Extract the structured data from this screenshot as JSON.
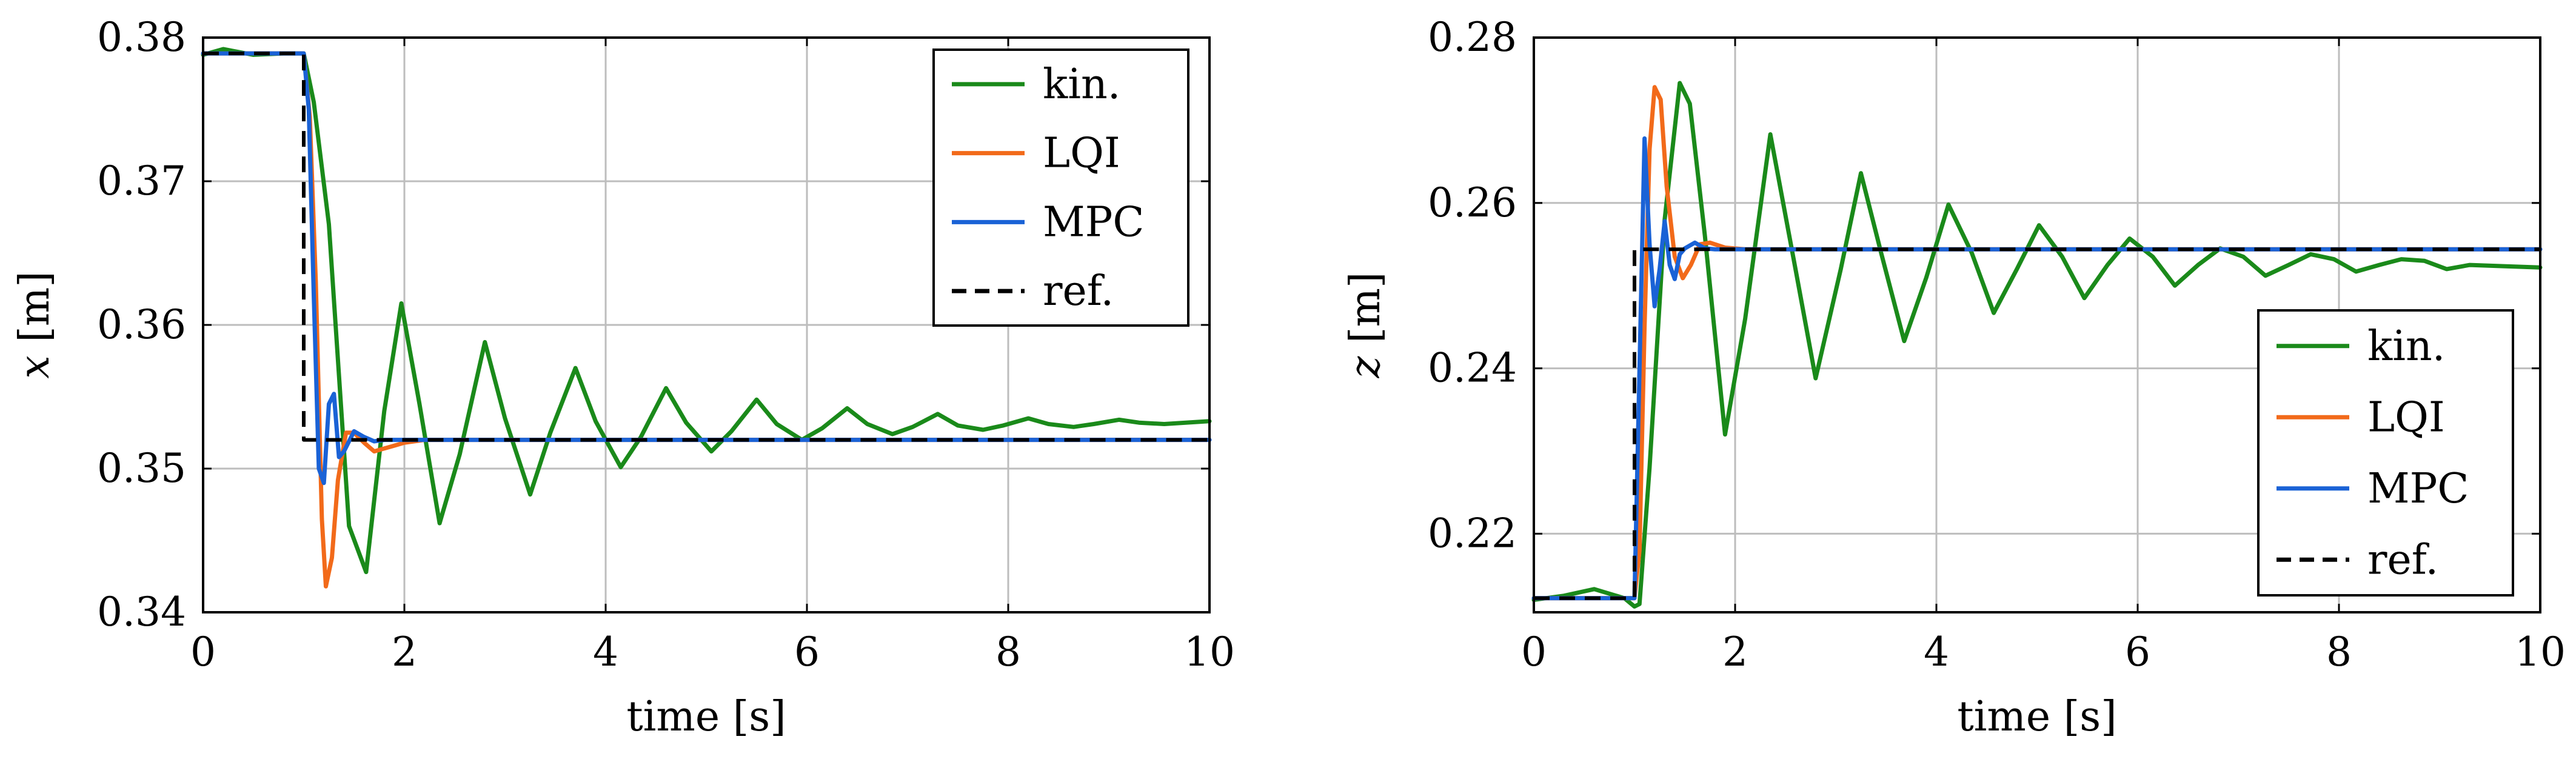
{
  "chart_data": [
    {
      "type": "line",
      "xlabel": "time [s]",
      "ylabel_var": "x",
      "ylabel_unit": " [m]",
      "xlim": [
        0,
        10
      ],
      "ylim": [
        0.34,
        0.38
      ],
      "xticks": [
        0,
        2,
        4,
        6,
        8,
        10
      ],
      "yticks": [
        0.34,
        0.35,
        0.36,
        0.37,
        0.38
      ],
      "xtick_labels": [
        "0",
        "2",
        "4",
        "6",
        "8",
        "10"
      ],
      "ytick_labels": [
        "0.34",
        "0.35",
        "0.36",
        "0.37",
        "0.38"
      ],
      "grid": true,
      "legend_position": "top-right",
      "series": [
        {
          "name": "kin.",
          "color": "#1a8a1a",
          "dashed": false,
          "x": [
            0,
            0.2,
            0.5,
            0.8,
            1.0,
            1.1,
            1.25,
            1.45,
            1.62,
            1.8,
            1.97,
            2.15,
            2.35,
            2.55,
            2.8,
            3.0,
            3.25,
            3.45,
            3.7,
            3.9,
            4.15,
            4.35,
            4.6,
            4.8,
            5.05,
            5.25,
            5.5,
            5.7,
            5.95,
            6.15,
            6.4,
            6.6,
            6.85,
            7.05,
            7.3,
            7.5,
            7.75,
            7.95,
            8.2,
            8.4,
            8.65,
            8.85,
            9.1,
            9.3,
            9.55,
            10.0
          ],
          "y": [
            0.3788,
            0.3792,
            0.3788,
            0.3789,
            0.3789,
            0.3755,
            0.367,
            0.346,
            0.3428,
            0.354,
            0.3615,
            0.3545,
            0.3462,
            0.351,
            0.3588,
            0.3535,
            0.3482,
            0.3525,
            0.357,
            0.3533,
            0.3501,
            0.3522,
            0.3556,
            0.3532,
            0.3512,
            0.3526,
            0.3548,
            0.3531,
            0.352,
            0.3528,
            0.3542,
            0.3531,
            0.3524,
            0.3529,
            0.3538,
            0.353,
            0.3527,
            0.353,
            0.3535,
            0.3531,
            0.3529,
            0.3531,
            0.3534,
            0.3532,
            0.3531,
            0.3533
          ]
        },
        {
          "name": "LQI",
          "color": "#f26a1a",
          "dashed": false,
          "x": [
            0,
            0.9,
            1.0,
            1.06,
            1.12,
            1.18,
            1.22,
            1.28,
            1.34,
            1.42,
            1.5,
            1.6,
            1.7,
            1.8,
            1.9,
            2.0,
            2.2,
            2.4,
            2.6,
            3.0,
            10.0
          ],
          "y": [
            0.3789,
            0.3789,
            0.3789,
            0.3745,
            0.363,
            0.3465,
            0.3418,
            0.3438,
            0.3492,
            0.3525,
            0.3525,
            0.3518,
            0.3512,
            0.3514,
            0.3516,
            0.3518,
            0.352,
            0.352,
            0.352,
            0.352,
            0.352
          ]
        },
        {
          "name": "MPC",
          "color": "#1a62d6",
          "dashed": false,
          "x": [
            0,
            0.9,
            1.0,
            1.05,
            1.1,
            1.15,
            1.2,
            1.25,
            1.3,
            1.35,
            1.4,
            1.5,
            1.6,
            1.7,
            1.8,
            2.0,
            10.0
          ],
          "y": [
            0.3789,
            0.3789,
            0.3789,
            0.375,
            0.362,
            0.35,
            0.349,
            0.3545,
            0.3552,
            0.3508,
            0.3512,
            0.3526,
            0.3522,
            0.3519,
            0.352,
            0.352,
            0.352
          ]
        },
        {
          "name": "ref.",
          "color": "#000000",
          "dashed": true,
          "x": [
            0,
            1.0,
            1.0,
            10.0
          ],
          "y": [
            0.3789,
            0.3789,
            0.352,
            0.352
          ]
        }
      ]
    },
    {
      "type": "line",
      "xlabel": "time [s]",
      "ylabel_var": "z",
      "ylabel_unit": " [m]",
      "xlim": [
        0,
        10
      ],
      "ylim": [
        0.2105,
        0.28
      ],
      "xticks": [
        0,
        2,
        4,
        6,
        8,
        10
      ],
      "yticks": [
        0.22,
        0.24,
        0.26,
        0.28
      ],
      "xtick_labels": [
        "0",
        "2",
        "4",
        "6",
        "8",
        "10"
      ],
      "ytick_labels": [
        "0.22",
        "0.24",
        "0.26",
        "0.28"
      ],
      "grid": true,
      "legend_position": "bottom-right",
      "series": [
        {
          "name": "kin.",
          "color": "#1a8a1a",
          "dashed": false,
          "x": [
            0,
            0.3,
            0.6,
            0.9,
            1.0,
            1.05,
            1.15,
            1.3,
            1.45,
            1.55,
            1.7,
            1.9,
            2.1,
            2.35,
            2.6,
            2.8,
            3.05,
            3.25,
            3.45,
            3.68,
            3.9,
            4.12,
            4.35,
            4.57,
            4.8,
            5.02,
            5.25,
            5.47,
            5.7,
            5.92,
            6.15,
            6.37,
            6.6,
            6.82,
            7.05,
            7.27,
            7.5,
            7.72,
            7.95,
            8.17,
            8.4,
            8.62,
            8.85,
            9.07,
            9.3,
            10.0
          ],
          "y": [
            0.212,
            0.2125,
            0.2133,
            0.2122,
            0.2112,
            0.2115,
            0.228,
            0.258,
            0.2745,
            0.272,
            0.256,
            0.232,
            0.246,
            0.2683,
            0.252,
            0.2388,
            0.252,
            0.2636,
            0.254,
            0.2433,
            0.251,
            0.2598,
            0.254,
            0.2467,
            0.252,
            0.2573,
            0.2535,
            0.2485,
            0.2525,
            0.2557,
            0.2535,
            0.25,
            0.2525,
            0.2545,
            0.2535,
            0.2512,
            0.2525,
            0.2538,
            0.2532,
            0.2517,
            0.2525,
            0.2532,
            0.253,
            0.252,
            0.2525,
            0.2522
          ]
        },
        {
          "name": "LQI",
          "color": "#f26a1a",
          "dashed": false,
          "x": [
            0,
            0.9,
            1.0,
            1.05,
            1.1,
            1.15,
            1.2,
            1.26,
            1.32,
            1.4,
            1.48,
            1.56,
            1.65,
            1.75,
            1.9,
            2.1,
            10.0
          ],
          "y": [
            0.2122,
            0.2122,
            0.2122,
            0.218,
            0.245,
            0.2665,
            0.274,
            0.2725,
            0.262,
            0.2535,
            0.2509,
            0.2525,
            0.255,
            0.2552,
            0.2546,
            0.2544,
            0.2544
          ]
        },
        {
          "name": "MPC",
          "color": "#1a62d6",
          "dashed": false,
          "x": [
            0,
            0.9,
            1.0,
            1.05,
            1.1,
            1.15,
            1.2,
            1.25,
            1.3,
            1.35,
            1.4,
            1.45,
            1.5,
            1.6,
            1.7,
            1.8,
            2.0,
            10.0
          ],
          "y": [
            0.2122,
            0.2122,
            0.2122,
            0.24,
            0.2678,
            0.255,
            0.2475,
            0.252,
            0.2578,
            0.2525,
            0.2508,
            0.2538,
            0.2545,
            0.2552,
            0.2545,
            0.2544,
            0.2544,
            0.2544
          ]
        },
        {
          "name": "ref.",
          "color": "#000000",
          "dashed": true,
          "x": [
            0,
            1.0,
            1.0,
            10.0
          ],
          "y": [
            0.2122,
            0.2122,
            0.2544,
            0.2544
          ]
        }
      ]
    }
  ]
}
